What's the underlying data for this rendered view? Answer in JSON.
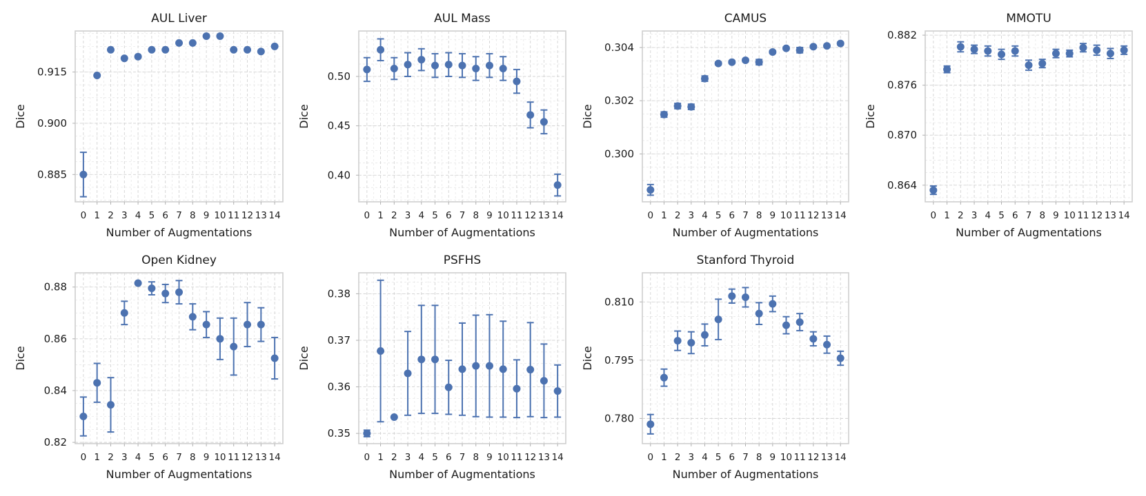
{
  "figure": {
    "accent_color": "#4c72b0"
  },
  "chart_data": [
    {
      "type": "scatter",
      "title": "AUL Liver",
      "xlabel": "Number of Augmentations",
      "ylabel": "Dice",
      "categories": [
        "0",
        "1",
        "2",
        "3",
        "4",
        "5",
        "6",
        "7",
        "8",
        "9",
        "10",
        "11",
        "12",
        "13",
        "14"
      ],
      "values": [
        0.885,
        0.914,
        0.9215,
        0.919,
        0.9195,
        0.9215,
        0.9215,
        0.9235,
        0.9235,
        0.9255,
        0.9255,
        0.9215,
        0.9215,
        0.921,
        0.9225
      ],
      "errors": [
        0.0065,
        0,
        0,
        0,
        0,
        0,
        0,
        0,
        0,
        0,
        0,
        0,
        0,
        0,
        0
      ],
      "yticks": [
        0.885,
        0.9,
        0.915
      ],
      "ytick_labels": [
        "0.885",
        "0.900",
        "0.915"
      ],
      "ylim": [
        0.877,
        0.927
      ],
      "grid": true
    },
    {
      "type": "scatter",
      "title": "AUL Mass",
      "xlabel": "Number of Augmentations",
      "ylabel": "Dice",
      "categories": [
        "0",
        "1",
        "2",
        "3",
        "4",
        "5",
        "6",
        "7",
        "8",
        "9",
        "10",
        "11",
        "12",
        "13",
        "14"
      ],
      "values": [
        0.507,
        0.527,
        0.508,
        0.512,
        0.517,
        0.511,
        0.512,
        0.511,
        0.508,
        0.511,
        0.508,
        0.495,
        0.461,
        0.454,
        0.39
      ],
      "errors": [
        0.012,
        0.011,
        0.011,
        0.012,
        0.011,
        0.012,
        0.012,
        0.012,
        0.012,
        0.012,
        0.012,
        0.012,
        0.013,
        0.012,
        0.011
      ],
      "yticks": [
        0.4,
        0.45,
        0.5
      ],
      "ytick_labels": [
        "0.40",
        "0.45",
        "0.50"
      ],
      "ylim": [
        0.373,
        0.546
      ],
      "grid": true
    },
    {
      "type": "scatter",
      "title": "CAMUS",
      "xlabel": "Number of Augmentations",
      "ylabel": "Dice",
      "categories": [
        "0",
        "1",
        "2",
        "3",
        "4",
        "5",
        "6",
        "7",
        "8",
        "9",
        "10",
        "11",
        "12",
        "13",
        "14"
      ],
      "values": [
        0.29865,
        0.30148,
        0.3018,
        0.30177,
        0.30283,
        0.3034,
        0.30345,
        0.30352,
        0.30345,
        0.30383,
        0.30397,
        0.3039,
        0.30403,
        0.30406,
        0.30415
      ],
      "errors": [
        0.0002,
        0.0001,
        0.0001,
        0.0001,
        0.0001,
        5e-05,
        5e-05,
        5e-05,
        0.0001,
        5e-05,
        5e-05,
        0.0001,
        5e-05,
        5e-05,
        5e-05
      ],
      "yticks": [
        0.3,
        0.302,
        0.304
      ],
      "ytick_labels": [
        "0.300",
        "0.302",
        "0.304"
      ],
      "ylim": [
        0.2982,
        0.30462
      ],
      "grid": true
    },
    {
      "type": "scatter",
      "title": "MMOTU",
      "xlabel": "Number of Augmentations",
      "ylabel": "Dice",
      "categories": [
        "0",
        "1",
        "2",
        "3",
        "4",
        "5",
        "6",
        "7",
        "8",
        "9",
        "10",
        "11",
        "12",
        "13",
        "14"
      ],
      "values": [
        0.8634,
        0.8779,
        0.8806,
        0.8803,
        0.8801,
        0.8797,
        0.8801,
        0.8784,
        0.8786,
        0.8798,
        0.8798,
        0.8805,
        0.8802,
        0.8798,
        0.8802
      ],
      "errors": [
        0.0005,
        0.0004,
        0.0006,
        0.0005,
        0.0006,
        0.0006,
        0.0006,
        0.0006,
        0.0005,
        0.0005,
        0.0004,
        0.0005,
        0.0006,
        0.0006,
        0.0005
      ],
      "yticks": [
        0.864,
        0.87,
        0.876,
        0.882
      ],
      "ytick_labels": [
        "0.864",
        "0.870",
        "0.876",
        "0.882"
      ],
      "ylim": [
        0.862,
        0.8825
      ],
      "grid": true
    },
    {
      "type": "scatter",
      "title": "Open Kidney",
      "xlabel": "Number of Augmentations",
      "ylabel": "Dice",
      "categories": [
        "0",
        "1",
        "2",
        "3",
        "4",
        "5",
        "6",
        "7",
        "8",
        "9",
        "10",
        "11",
        "12",
        "13",
        "14"
      ],
      "values": [
        0.83,
        0.843,
        0.8345,
        0.87,
        0.8815,
        0.8795,
        0.8775,
        0.878,
        0.8685,
        0.8655,
        0.86,
        0.857,
        0.8655,
        0.8655,
        0.8525
      ],
      "errors": [
        0.0075,
        0.0075,
        0.0105,
        0.0045,
        0,
        0.0025,
        0.0035,
        0.0045,
        0.005,
        0.005,
        0.008,
        0.011,
        0.0085,
        0.0065,
        0.008
      ],
      "yticks": [
        0.82,
        0.84,
        0.86,
        0.88
      ],
      "ytick_labels": [
        "0.82",
        "0.84",
        "0.86",
        "0.88"
      ],
      "ylim": [
        0.8195,
        0.8855
      ],
      "grid": true
    },
    {
      "type": "scatter",
      "title": "PSFHS",
      "xlabel": "Number of Augmentations",
      "ylabel": "Dice",
      "categories": [
        "0",
        "1",
        "2",
        "3",
        "4",
        "5",
        "6",
        "7",
        "8",
        "9",
        "10",
        "11",
        "12",
        "13",
        "14"
      ],
      "values": [
        0.35,
        0.3677,
        0.3535,
        0.3629,
        0.3659,
        0.3659,
        0.3599,
        0.3638,
        0.3645,
        0.3645,
        0.3638,
        0.3596,
        0.3637,
        0.3613,
        0.3591
      ],
      "errors": [
        0.0007,
        0.0152,
        0,
        0.009,
        0.0116,
        0.0116,
        0.0058,
        0.0099,
        0.0109,
        0.011,
        0.0103,
        0.0062,
        0.0101,
        0.0079,
        0.0056
      ],
      "yticks": [
        0.35,
        0.36,
        0.37,
        0.38
      ],
      "ytick_labels": [
        "0.35",
        "0.36",
        "0.37",
        "0.38"
      ],
      "ylim": [
        0.3478,
        0.3845
      ],
      "grid": true
    },
    {
      "type": "scatter",
      "title": "Stanford Thyroid",
      "xlabel": "Number of Augmentations",
      "ylabel": "Dice",
      "categories": [
        "0",
        "1",
        "2",
        "3",
        "4",
        "5",
        "6",
        "7",
        "8",
        "9",
        "10",
        "11",
        "12",
        "13",
        "14"
      ],
      "values": [
        0.7785,
        0.7905,
        0.8,
        0.7995,
        0.8015,
        0.8055,
        0.8115,
        0.8112,
        0.807,
        0.8095,
        0.804,
        0.8048,
        0.8005,
        0.799,
        0.7955
      ],
      "errors": [
        0.0025,
        0.0022,
        0.0025,
        0.0028,
        0.0028,
        0.0052,
        0.0018,
        0.0025,
        0.0028,
        0.002,
        0.0022,
        0.0022,
        0.0018,
        0.0022,
        0.0018
      ],
      "yticks": [
        0.78,
        0.795,
        0.81
      ],
      "ytick_labels": [
        "0.780",
        "0.795",
        "0.810"
      ],
      "ylim": [
        0.7735,
        0.8175
      ],
      "grid": true
    }
  ]
}
